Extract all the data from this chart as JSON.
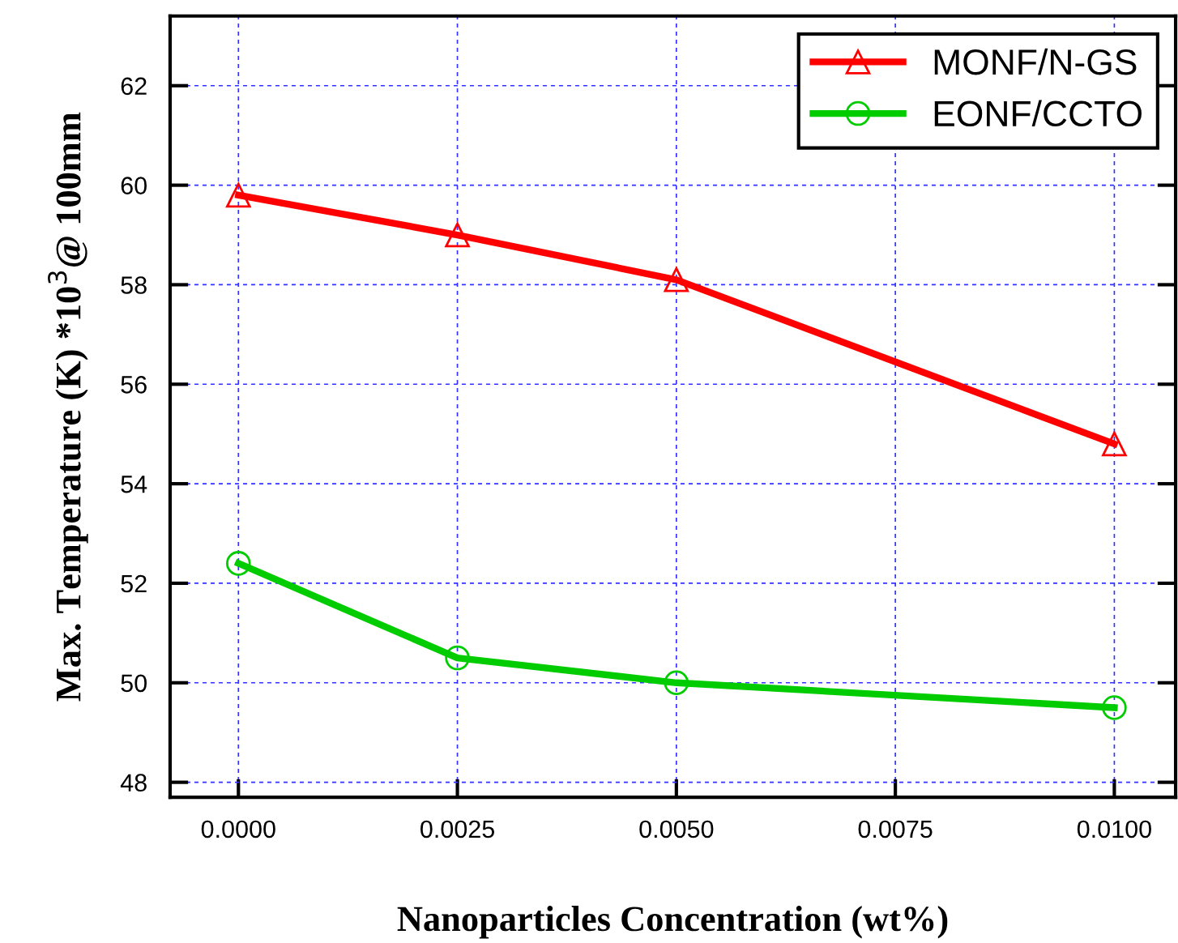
{
  "chart_data": {
    "type": "line",
    "xlabel": "Nanoparticles Concentration (wt%)",
    "ylabel": "Max. Temperature (K) *10$^{3}$@ 100mm",
    "x": [
      0.0,
      0.0025,
      0.005,
      0.01
    ],
    "series": [
      {
        "name": "MONF/N-GS",
        "color": "#ff0000",
        "values": [
          59.8,
          59.0,
          58.1,
          54.8
        ],
        "marker": "triangle"
      },
      {
        "name": "EONF/CCTO",
        "color": "#00cc00",
        "values": [
          52.4,
          50.5,
          50.0,
          49.5
        ],
        "marker": "circle"
      }
    ],
    "xlim": [
      -0.00078,
      0.0107
    ],
    "ylim": [
      47.7,
      63.4
    ],
    "xticks": [
      {
        "value": 0.0,
        "label": "0.0000"
      },
      {
        "value": 0.0025,
        "label": "0.0025"
      },
      {
        "value": 0.005,
        "label": "0.0050"
      },
      {
        "value": 0.0075,
        "label": "0.0075"
      },
      {
        "value": 0.01,
        "label": "0.0100"
      }
    ],
    "yticks": [
      48,
      50,
      52,
      54,
      56,
      58,
      60,
      62
    ],
    "grid": true,
    "legend": "top right",
    "line_style": "solid"
  }
}
